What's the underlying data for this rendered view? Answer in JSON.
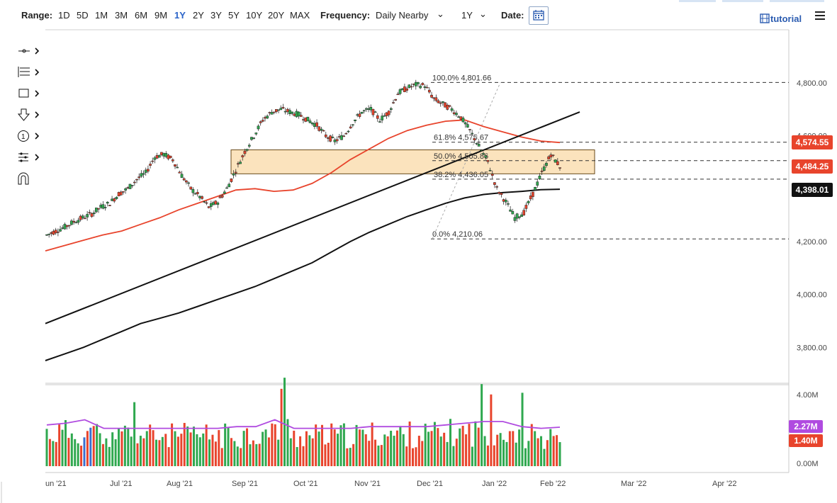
{
  "range": {
    "label": "Range:",
    "options": [
      "1D",
      "5D",
      "1M",
      "3M",
      "6M",
      "9M",
      "1Y",
      "2Y",
      "3Y",
      "5Y",
      "10Y",
      "20Y",
      "MAX"
    ],
    "active": "1Y"
  },
  "frequency": {
    "label": "Frequency:",
    "value": "Daily Nearby"
  },
  "period": {
    "value": "1Y"
  },
  "date": {
    "label": "Date:"
  },
  "tutorial": {
    "label": "tutorial"
  },
  "icons": {
    "calendar": "calendar-icon",
    "menu": "hamburger-menu-icon",
    "tutorial": "film-icon",
    "tools": [
      "line-tool-icon",
      "fib-tool-icon",
      "rectangle-tool-icon",
      "arrow-down-icon",
      "counter-icon",
      "measure-tool-icon",
      "magnet-icon"
    ]
  },
  "price_tags": [
    {
      "text": "4,574.55",
      "color": "#e8442c"
    },
    {
      "text": "4,484.25",
      "color": "#e8442c"
    },
    {
      "text": "4,398.01",
      "color": "#111111"
    }
  ],
  "volume_tags": [
    {
      "text": "2.27M",
      "color": "#b04be0"
    },
    {
      "text": "1.40M",
      "color": "#e8442c"
    }
  ],
  "chart_data": {
    "type": "candlestick",
    "price_axis": {
      "ticks": [
        "4,800.00",
        "4,600.00",
        "4,200.00",
        "4,000.00",
        "3,800.00"
      ],
      "ylim": [
        3650,
        4950
      ]
    },
    "volume_axis": {
      "ticks": [
        "4.00M",
        "0.00M"
      ]
    },
    "x_ticks": [
      "un '21",
      "Jul '21",
      "Aug '21",
      "Sep '21",
      "Oct '21",
      "Nov '21",
      "Dec '21",
      "Jan '22",
      "Feb '22",
      "Mar '22",
      "Apr '22"
    ],
    "fibonacci": [
      {
        "label": "100.0% 4,801.66",
        "value": 4801.66
      },
      {
        "label": "61.8% 4,575.67",
        "value": 4575.67
      },
      {
        "label": "50.0% 4,505.86",
        "value": 4505.86
      },
      {
        "label": "38.2% 4,436.05",
        "value": 4436.05
      },
      {
        "label": "0.0% 4,210.06",
        "value": 4210.06
      }
    ],
    "support_zone": [
      4483,
      4520
    ],
    "ma_50": [
      4165,
      4185,
      4205,
      4225,
      4240,
      4265,
      4290,
      4320,
      4345,
      4370,
      4395,
      4400,
      4390,
      4395,
      4420,
      4460,
      4510,
      4550,
      4590,
      4620,
      4640,
      4655,
      4660,
      4635,
      4615,
      4595,
      4580,
      4574.55
    ],
    "ma_200": [
      3750,
      3775,
      3800,
      3830,
      3860,
      3890,
      3910,
      3930,
      3955,
      3980,
      4005,
      4030,
      4060,
      4090,
      4120,
      4160,
      4200,
      4235,
      4265,
      4295,
      4320,
      4345,
      4365,
      4378,
      4385,
      4390,
      4396,
      4398.01
    ],
    "trendline": [
      [
        0,
        3890
      ],
      [
        27,
        4690
      ]
    ],
    "close": [
      4225,
      4240,
      4255,
      4275,
      4290,
      4305,
      4330,
      4345,
      4380,
      4400,
      4435,
      4460,
      4520,
      4530,
      4510,
      4450,
      4400,
      4370,
      4330,
      4350,
      4400,
      4470,
      4540,
      4600,
      4660,
      4690,
      4700,
      4690,
      4680,
      4660,
      4640,
      4600,
      4580,
      4600,
      4650,
      4690,
      4700,
      4660,
      4690,
      4760,
      4780,
      4793,
      4790,
      4740,
      4720,
      4700,
      4670,
      4620,
      4560,
      4500,
      4400,
      4350,
      4290,
      4310,
      4380,
      4460,
      4530,
      4484.25
    ],
    "volume_avg": [
      2.4,
      2.5,
      2.7,
      2.2,
      2.2,
      2.2,
      2.2,
      2.2,
      2.2,
      2.2,
      2.3,
      2.3,
      2.7,
      2.2,
      2.2,
      2.2,
      2.2,
      2.3,
      2.3,
      2.3,
      2.3,
      2.4,
      2.5,
      2.6,
      2.6,
      2.3,
      2.2,
      2.27
    ],
    "volume_last": 1.4
  }
}
